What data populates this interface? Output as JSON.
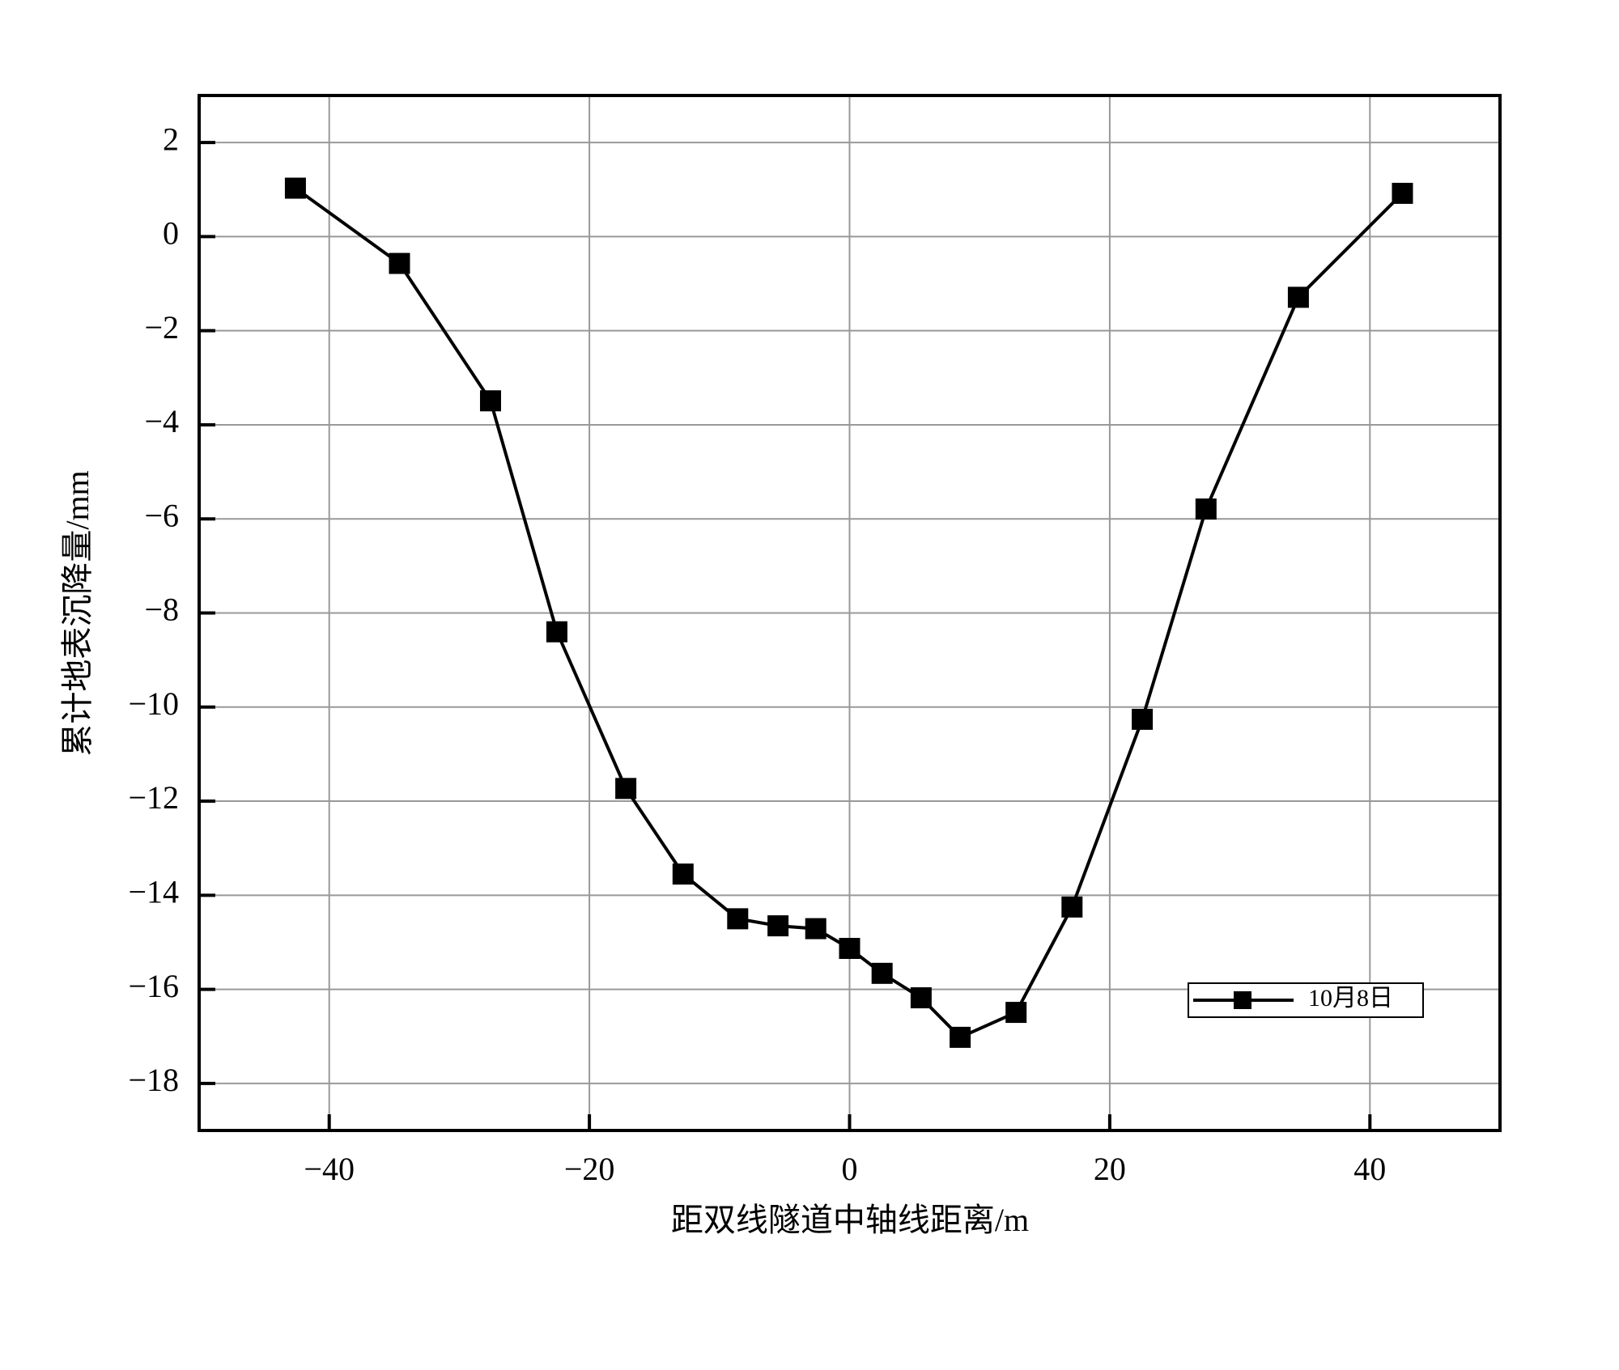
{
  "chart_data": {
    "type": "line",
    "x_label": "距双线隧道中轴线距离/m",
    "y_label": "累计地表沉降量/mm",
    "x": [
      -42.6,
      -34.6,
      -27.6,
      -22.5,
      -17.2,
      -12.8,
      -8.6,
      -5.5,
      -2.6,
      0,
      2.5,
      5.5,
      8.5,
      12.8,
      17.1,
      22.5,
      27.4,
      34.5,
      42.5
    ],
    "series": [
      {
        "name": "10月8日",
        "color": "#000000",
        "values": [
          1.03,
          -0.57,
          -3.49,
          -8.4,
          -11.73,
          -13.55,
          -14.5,
          -14.65,
          -14.71,
          -15.13,
          -15.66,
          -16.18,
          -17.02,
          -16.49,
          -14.25,
          -10.26,
          -5.79,
          -1.29,
          0.92
        ]
      }
    ],
    "xlim": [
      -50,
      50
    ],
    "ylim": [
      -19,
      3
    ],
    "xticks": [
      {
        "value": -40,
        "label": "−40"
      },
      {
        "value": -20,
        "label": "−20"
      },
      0,
      20,
      40
    ],
    "yticks": [
      2,
      0,
      {
        "value": -2,
        "label": "−2"
      },
      {
        "value": -4,
        "label": "−4"
      },
      {
        "value": -6,
        "label": "−6"
      },
      {
        "value": -8,
        "label": "−8"
      },
      {
        "value": -10,
        "label": "−10"
      },
      {
        "value": -12,
        "label": "−12"
      },
      {
        "value": -14,
        "label": "−14"
      },
      {
        "value": -16,
        "label": "−16"
      },
      {
        "value": -18,
        "label": "−18"
      }
    ],
    "grid": true,
    "legend": "lower right"
  }
}
